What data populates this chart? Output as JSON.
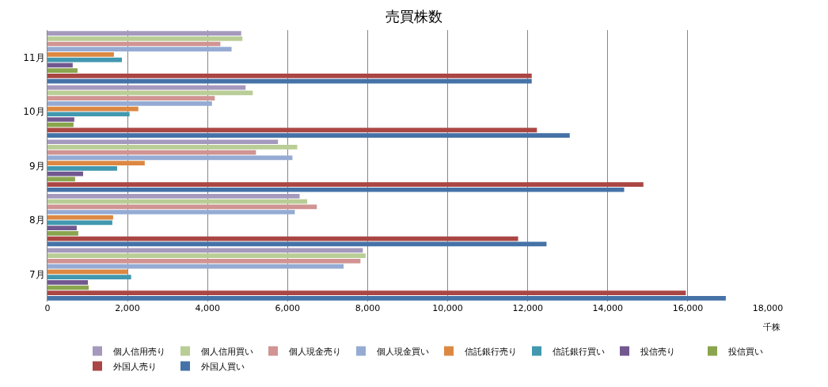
{
  "chart_data": {
    "type": "bar",
    "orientation": "horizontal",
    "title": "売買株数",
    "xlabel": "千株",
    "categories": [
      "11月",
      "10月",
      "9月",
      "8月",
      "7月"
    ],
    "series": [
      {
        "name": "個人信用売り",
        "color": "#a599bd",
        "values": [
          4840,
          4950,
          5760,
          6300,
          7880
        ]
      },
      {
        "name": "個人信用買い",
        "color": "#b9cd96",
        "values": [
          4870,
          5130,
          6240,
          6490,
          7950
        ]
      },
      {
        "name": "個人現金売り",
        "color": "#d09493",
        "values": [
          4320,
          4180,
          5210,
          6730,
          7820
        ]
      },
      {
        "name": "個人現金買い",
        "color": "#95abd3",
        "values": [
          4600,
          4110,
          6120,
          6180,
          7400
        ]
      },
      {
        "name": "信託銀行売り",
        "color": "#dc8842",
        "values": [
          1660,
          2270,
          2430,
          1640,
          2010
        ]
      },
      {
        "name": "信託銀行買い",
        "color": "#4198af",
        "values": [
          1860,
          2050,
          1740,
          1620,
          2090
        ]
      },
      {
        "name": "投信売り",
        "color": "#71588f",
        "values": [
          630,
          670,
          890,
          730,
          1010
        ]
      },
      {
        "name": "投信買い",
        "color": "#89a54e",
        "values": [
          750,
          650,
          690,
          770,
          1030
        ]
      },
      {
        "name": "外国人売り",
        "color": "#aa4643",
        "values": [
          12100,
          12230,
          14890,
          11760,
          15950
        ]
      },
      {
        "name": "外国人買い",
        "color": "#4572a7",
        "values": [
          12100,
          13050,
          14410,
          12470,
          16950
        ]
      }
    ],
    "xlim": [
      0,
      18000
    ],
    "xticks": [
      0,
      {
        "value": 2000,
        "label": "2,000"
      },
      {
        "value": 4000,
        "label": "4,000"
      },
      {
        "value": 6000,
        "label": "6,000"
      },
      {
        "value": 8000,
        "label": "8,000"
      },
      {
        "value": 10000,
        "label": "10,000"
      },
      {
        "value": 12000,
        "label": "12,000"
      },
      {
        "value": 14000,
        "label": "14,000"
      },
      {
        "value": 16000,
        "label": "16,000"
      },
      {
        "value": 18000,
        "label": "18,000"
      }
    ],
    "grid": "x",
    "legend": "bottom"
  }
}
